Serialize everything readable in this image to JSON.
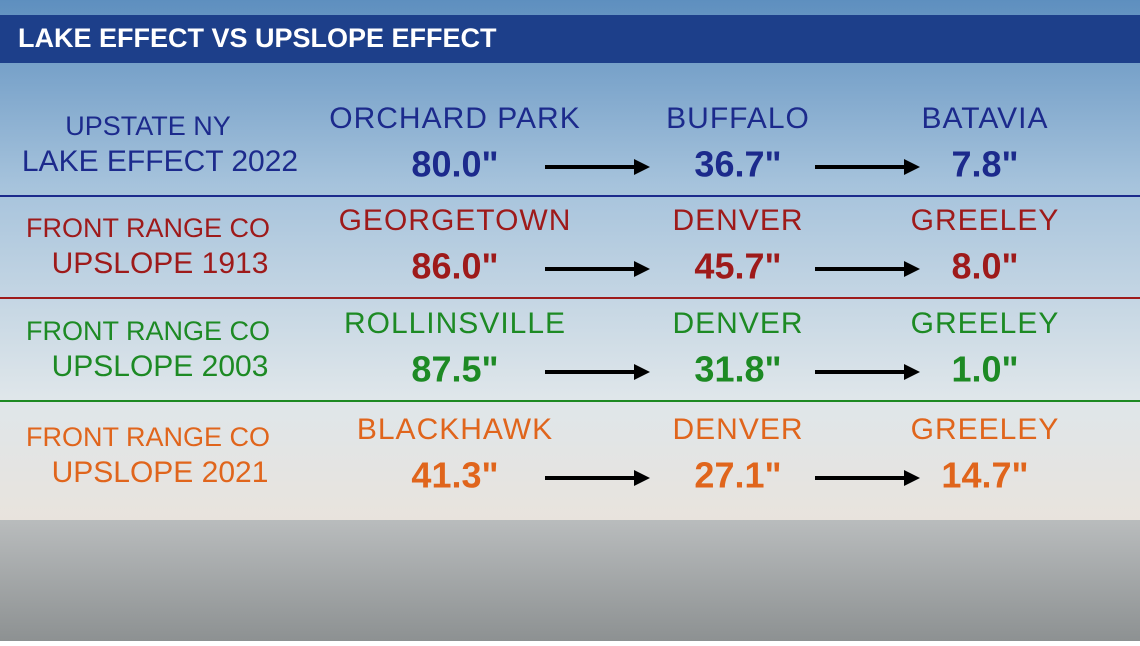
{
  "header": {
    "title": "LAKE EFFECT VS UPSLOPE EFFECT"
  },
  "rows": [
    {
      "label": [
        "UPSTATE NY",
        "LAKE EFFECT 2022"
      ],
      "color": "#1c2a8c",
      "places": [
        {
          "name": "ORCHARD PARK",
          "amount": "80.0\""
        },
        {
          "name": "BUFFALO",
          "amount": "36.7\""
        },
        {
          "name": "BATAVIA",
          "amount": "7.8\""
        }
      ]
    },
    {
      "label": [
        "FRONT RANGE CO",
        "UPSLOPE 1913"
      ],
      "color": "#9e1a1a",
      "places": [
        {
          "name": "GEORGETOWN",
          "amount": "86.0\""
        },
        {
          "name": "DENVER",
          "amount": "45.7\""
        },
        {
          "name": "GREELEY",
          "amount": "8.0\""
        }
      ]
    },
    {
      "label": [
        "FRONT RANGE CO",
        "UPSLOPE 2003"
      ],
      "color": "#1d8a24",
      "places": [
        {
          "name": "ROLLINSVILLE",
          "amount": "87.5\""
        },
        {
          "name": "DENVER",
          "amount": "31.8\""
        },
        {
          "name": "GREELEY",
          "amount": "1.0\""
        }
      ]
    },
    {
      "label": [
        "FRONT RANGE CO",
        "UPSLOPE 2021"
      ],
      "color": "#e0651c",
      "places": [
        {
          "name": "BLACKHAWK",
          "amount": "41.3\""
        },
        {
          "name": "DENVER",
          "amount": "27.1\""
        },
        {
          "name": "GREELEY",
          "amount": "14.7\""
        }
      ]
    }
  ]
}
